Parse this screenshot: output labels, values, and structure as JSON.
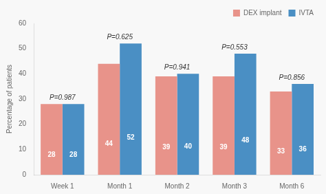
{
  "chart_data": {
    "type": "bar",
    "categories": [
      "Week 1",
      "Month 1",
      "Month 2",
      "Month 3",
      "Month 6"
    ],
    "series": [
      {
        "name": "DEX implant",
        "color": "#E8938A",
        "values": [
          28,
          44,
          39,
          39,
          33
        ]
      },
      {
        "name": "IVTA",
        "color": "#4A8FC4",
        "values": [
          28,
          52,
          40,
          48,
          36
        ]
      }
    ],
    "annotations": [
      "P=0.987",
      "P=0.625",
      "P=0.941",
      "P=0.553",
      "P=0.856"
    ],
    "ylabel": "Percentage of patients",
    "ylim": [
      0,
      60
    ],
    "yticks": [
      0,
      10,
      20,
      30,
      40,
      50,
      60
    ],
    "grid": false,
    "legend": "upper right",
    "data_labels": true
  }
}
